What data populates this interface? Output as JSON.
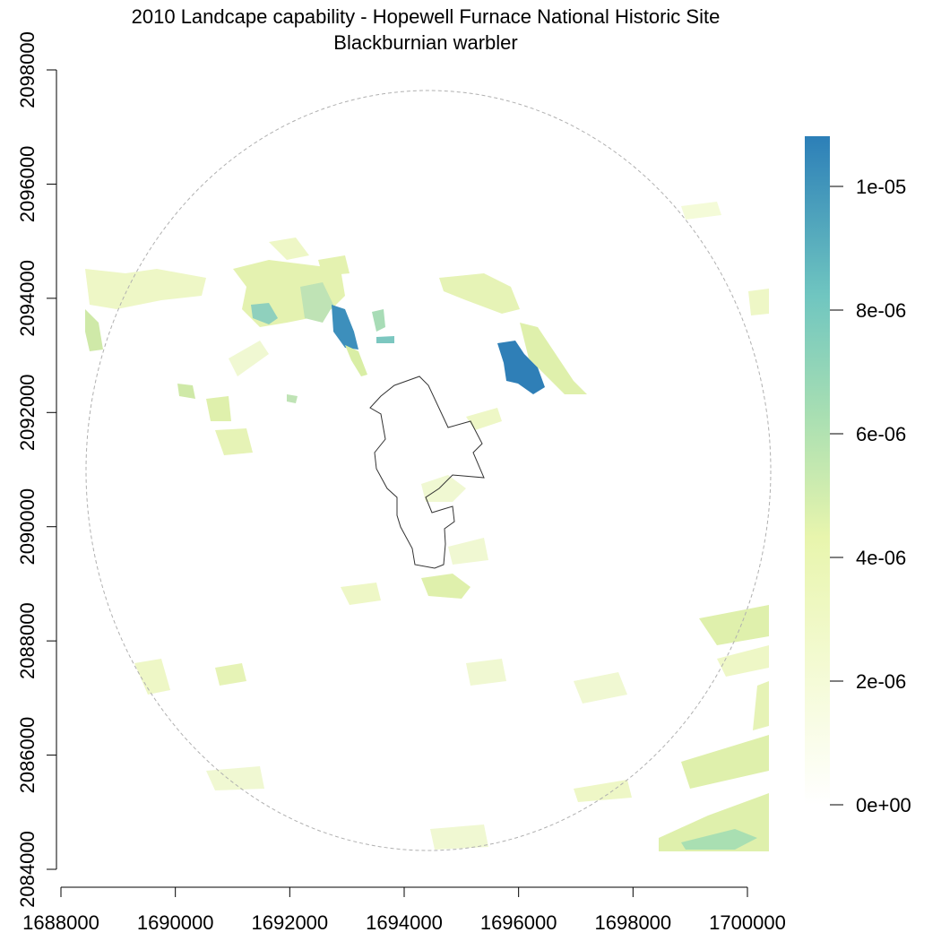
{
  "title": {
    "line1": "2010 Landcape capability - Hopewell Furnace National Historic Site",
    "line2": "Blackburnian warbler"
  },
  "map": {
    "x_axis": {
      "ticks": [
        "1688000",
        "1690000",
        "1692000",
        "1694000",
        "1696000",
        "1698000",
        "1700000"
      ],
      "range": [
        1688000,
        1700000
      ]
    },
    "y_axis": {
      "ticks": [
        "2084000",
        "2086000",
        "2088000",
        "2090000",
        "2092000",
        "2094000",
        "2096000",
        "2098000"
      ],
      "range": [
        2084000,
        2098000
      ]
    },
    "legend": {
      "labels": [
        "0e+00",
        "2e-06",
        "4e-06",
        "6e-06",
        "8e-06",
        "1e-05"
      ],
      "colors": [
        "#ffffff",
        "#f4fbd0",
        "#e6f4a8",
        "#a8dfb4",
        "#6fc5c0",
        "#2c7fb8"
      ]
    },
    "colors": {
      "low": "#eef7c6",
      "mid": "#dcefa2",
      "high": "#2c7fb8",
      "boundary": "#333333",
      "buffer": "#b0b0b0"
    }
  }
}
